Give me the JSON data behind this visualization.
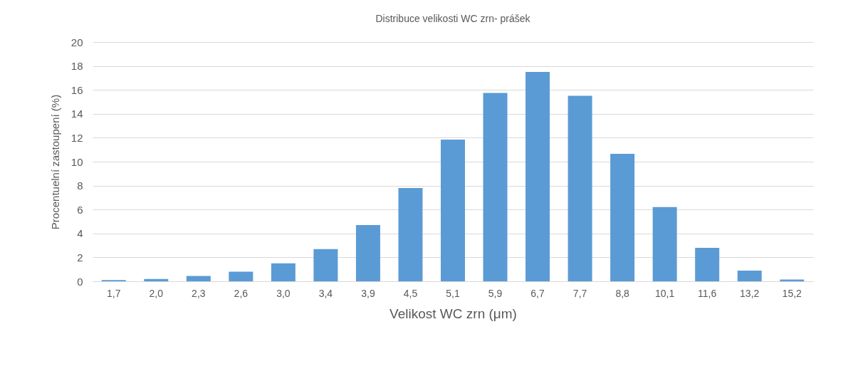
{
  "chart_data": {
    "type": "bar",
    "title": "Distribuce velikosti WC zrn- prášek",
    "xlabel": "Velikost WC zrn (μm)",
    "ylabel": "Procentuelní zastoupení (%)",
    "categories": [
      "1,7",
      "2,0",
      "2,3",
      "2,6",
      "3,0",
      "3,4",
      "3,9",
      "4,5",
      "5,1",
      "5,9",
      "6,7",
      "7,7",
      "8,8",
      "10,1",
      "11,6",
      "13,2",
      "15,2"
    ],
    "values": [
      0.1,
      0.2,
      0.45,
      0.8,
      1.5,
      2.7,
      4.7,
      7.8,
      11.85,
      15.75,
      17.5,
      15.5,
      10.65,
      6.2,
      2.8,
      0.9,
      0.15
    ],
    "color": "#5b9bd5",
    "ylim": [
      0,
      20
    ],
    "yticks": [
      0,
      2,
      4,
      6,
      8,
      10,
      12,
      14,
      16,
      18,
      20
    ],
    "grid": "y"
  }
}
